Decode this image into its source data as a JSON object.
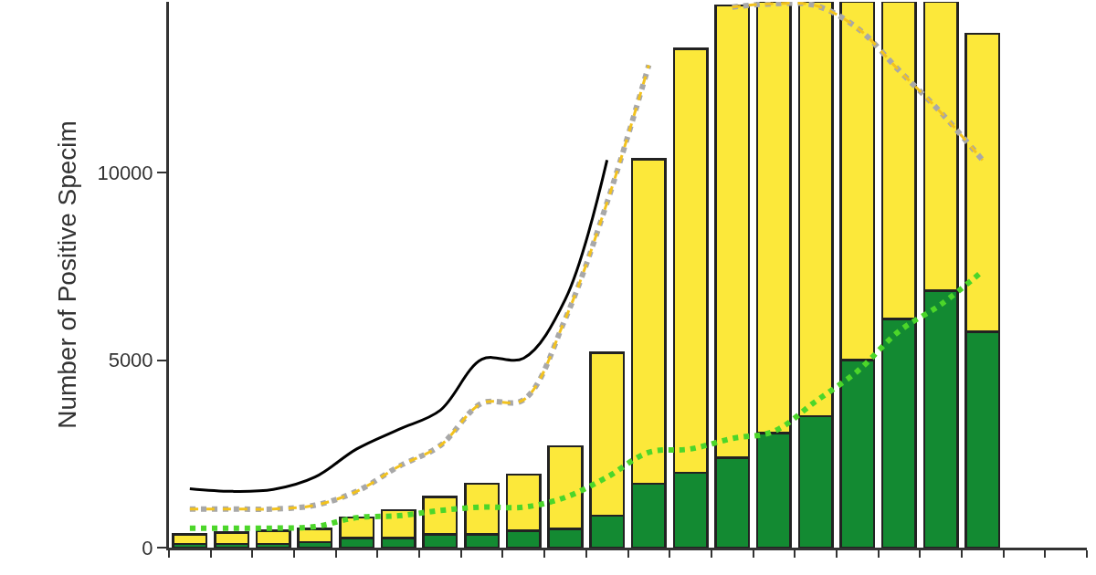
{
  "chart_data": {
    "type": "bar",
    "stacked": true,
    "ylabel": "Number of Positive Specim",
    "categories": [
      null,
      null,
      null,
      null,
      null,
      null,
      null,
      null,
      null,
      null,
      null,
      null,
      null,
      null,
      null,
      null,
      null,
      null,
      null,
      null,
      null,
      null
    ],
    "series": [
      {
        "color": "#138a32",
        "values": [
          100,
          100,
          100,
          150,
          250,
          250,
          350,
          350,
          450,
          500,
          850,
          1700,
          2000,
          2400,
          3050,
          3500,
          5000,
          6100,
          6850,
          5750,
          null,
          null
        ]
      },
      {
        "color": "#fce83a",
        "values": [
          250,
          300,
          350,
          350,
          550,
          750,
          1000,
          1350,
          1500,
          2200,
          4350,
          8650,
          11300,
          12050,
          11500,
          11050,
          9550,
          8450,
          7700,
          7950,
          null,
          null
        ]
      },
      {
        "type": "line",
        "color": "#000000",
        "line_style": "solid",
        "values": [
          1570,
          1500,
          1550,
          1880,
          2630,
          3150,
          3660,
          5020,
          5050,
          6620,
          10330,
          null,
          null,
          null,
          null,
          null,
          null,
          null,
          null,
          null,
          null,
          null
        ]
      },
      {
        "type": "line",
        "color": "#a8a8a8",
        "line_style": "dotted",
        "values": [
          1030,
          1030,
          1030,
          1130,
          1500,
          2160,
          2720,
          3850,
          3940,
          6100,
          9200,
          12860,
          null,
          14410,
          14500,
          14450,
          13850,
          12720,
          11600,
          10330,
          null,
          null
        ]
      },
      {
        "type": "line",
        "color": "#f2c21e",
        "line_style": "dashed",
        "values": [
          1030,
          1030,
          1030,
          1130,
          1500,
          2160,
          2720,
          3850,
          3940,
          6100,
          9200,
          12860,
          null,
          14410,
          14500,
          14450,
          13850,
          12720,
          11600,
          10330,
          null,
          null
        ]
      },
      {
        "type": "line",
        "color": "#4cd62a",
        "line_style": "dotted",
        "values": [
          520,
          520,
          520,
          560,
          800,
          850,
          990,
          1080,
          1080,
          1340,
          1880,
          2540,
          2630,
          2910,
          3100,
          3900,
          4700,
          5770,
          6480,
          7370,
          null,
          null
        ]
      }
    ],
    "ylim": [
      0,
      14550
    ],
    "yticks": [
      0,
      5000,
      10000
    ],
    "grid": false
  }
}
